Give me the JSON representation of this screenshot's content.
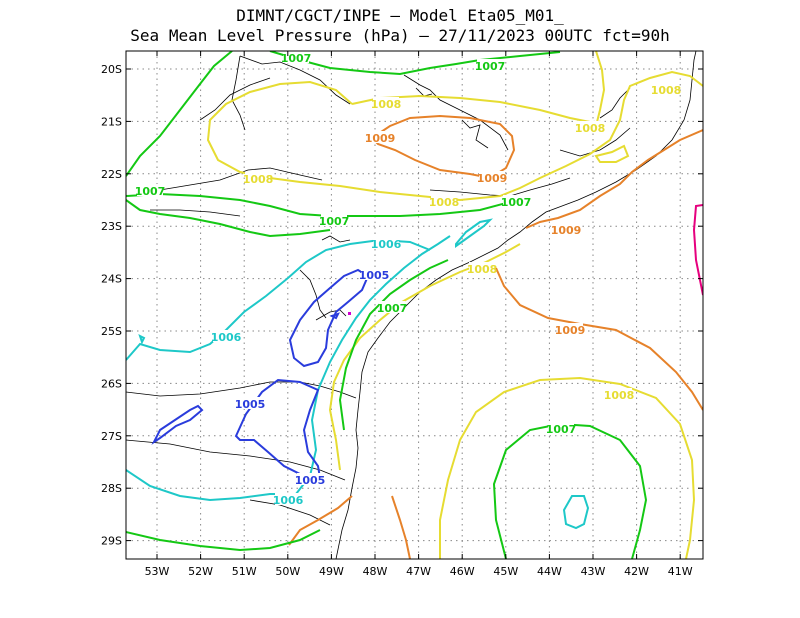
{
  "title": {
    "line1": "DIMNT/CGCT/INPE –  Model Eta05_M01_",
    "line2": "Sea Mean Level Pressure (hPa) – 27/11/2023 00UTC fct=90h"
  },
  "axes": {
    "lat_labels": [
      "20S",
      "21S",
      "22S",
      "23S",
      "24S",
      "25S",
      "26S",
      "27S",
      "28S",
      "29S"
    ],
    "lon_labels": [
      "53W",
      "52W",
      "51W",
      "50W",
      "49W",
      "48W",
      "47W",
      "46W",
      "45W",
      "44W",
      "43W",
      "42W",
      "41W"
    ],
    "grid": "dotted"
  },
  "colors": {
    "c1005": "#2a3cdc",
    "c1006": "#1ec8c8",
    "c1007": "#14c814",
    "c1008": "#e6dc32",
    "c1009": "#e6822a",
    "c1010": "#e6007e",
    "coast": "#000000"
  },
  "contour_labels": [
    {
      "text": "1007",
      "level": "1007"
    },
    {
      "text": "1007",
      "level": "1007"
    },
    {
      "text": "1007",
      "level": "1007"
    },
    {
      "text": "1007",
      "level": "1007"
    },
    {
      "text": "1007",
      "level": "1007"
    },
    {
      "text": "1007",
      "level": "1007"
    },
    {
      "text": "1007",
      "level": "1007"
    },
    {
      "text": "1008",
      "level": "1008"
    },
    {
      "text": "1008",
      "level": "1008"
    },
    {
      "text": "1008",
      "level": "1008"
    },
    {
      "text": "1008",
      "level": "1008"
    },
    {
      "text": "1008",
      "level": "1008"
    },
    {
      "text": "1008",
      "level": "1008"
    },
    {
      "text": "1008",
      "level": "1008"
    },
    {
      "text": "1009",
      "level": "1009"
    },
    {
      "text": "1009",
      "level": "1009"
    },
    {
      "text": "1009",
      "level": "1009"
    },
    {
      "text": "1009",
      "level": "1009"
    },
    {
      "text": "1006",
      "level": "1006"
    },
    {
      "text": "1006",
      "level": "1006"
    },
    {
      "text": "1006",
      "level": "1006"
    },
    {
      "text": "1005",
      "level": "1005"
    },
    {
      "text": "1005",
      "level": "1005"
    },
    {
      "text": "1005",
      "level": "1005"
    }
  ]
}
